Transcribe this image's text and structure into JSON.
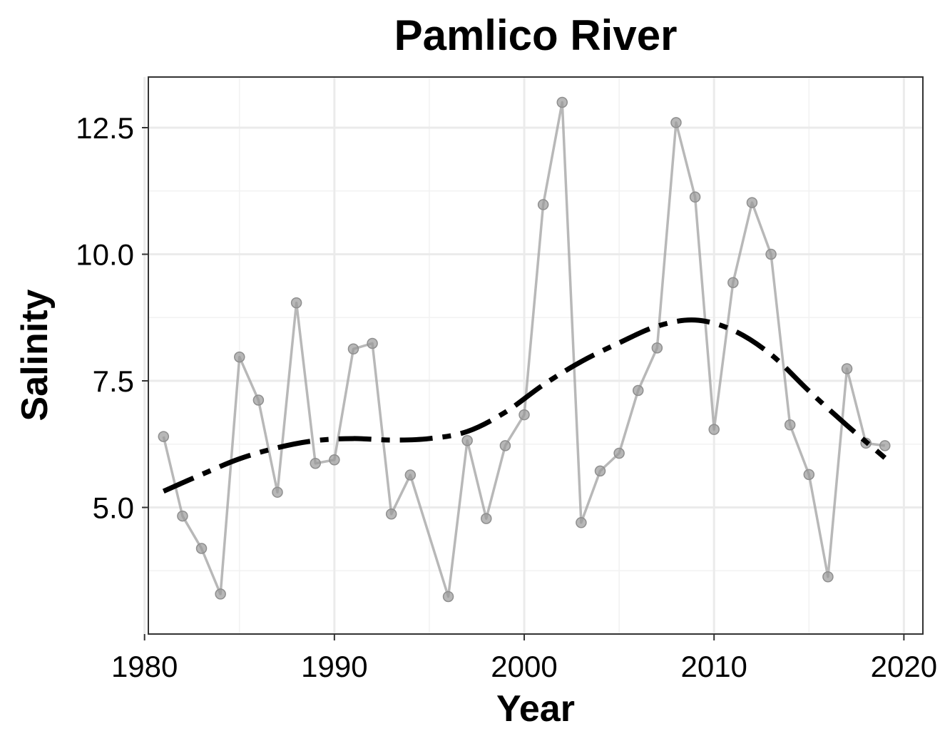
{
  "chart_data": {
    "type": "line",
    "title": "Pamlico River",
    "xlabel": "Year",
    "ylabel": "Salinity",
    "xlim": [
      1980.2,
      2021
    ],
    "ylim": [
      2.5,
      13.5
    ],
    "x_ticks": [
      1980,
      1990,
      2000,
      2010,
      2020
    ],
    "x_tick_labels": [
      "1980",
      "1990",
      "2000",
      "2010",
      "2020"
    ],
    "y_ticks": [
      5.0,
      7.5,
      10.0,
      12.5
    ],
    "y_tick_labels": [
      "5.0",
      "7.5",
      "10.0",
      "12.5"
    ],
    "grid": true,
    "series": [
      {
        "style": "line+points",
        "color": "#a6a6a6",
        "x": [
          1981,
          1982,
          1983,
          1984,
          1985,
          1986,
          1987,
          1988,
          1989,
          1990,
          1991,
          1992,
          1993,
          1994,
          1996,
          1997,
          1998,
          1999,
          2000,
          2001,
          2002,
          2003,
          2004,
          2005,
          2006,
          2007,
          2008,
          2009,
          2010,
          2011,
          2012,
          2013,
          2014,
          2015,
          2016,
          2017,
          2018,
          2019
        ],
        "y": [
          6.4,
          4.83,
          4.19,
          3.29,
          7.97,
          7.12,
          5.3,
          9.04,
          5.87,
          5.94,
          8.13,
          8.24,
          4.87,
          5.64,
          3.24,
          6.32,
          4.78,
          6.22,
          6.83,
          10.98,
          13.0,
          4.7,
          5.72,
          6.07,
          7.31,
          8.15,
          12.6,
          11.13,
          6.54,
          9.44,
          11.02,
          10.0,
          6.63,
          5.65,
          3.63,
          7.74,
          6.27,
          6.22
        ]
      },
      {
        "style": "dashed-trend",
        "color": "#000000",
        "x": [
          1981,
          1983,
          1985,
          1987,
          1989,
          1991,
          1993,
          1995,
          1997,
          1999,
          2001,
          2003,
          2005,
          2007,
          2009,
          2011,
          2013,
          2015,
          2017,
          2019
        ],
        "y": [
          5.32,
          5.65,
          5.96,
          6.18,
          6.32,
          6.36,
          6.33,
          6.36,
          6.5,
          6.88,
          7.42,
          7.88,
          8.25,
          8.58,
          8.7,
          8.5,
          8.02,
          7.3,
          6.62,
          5.98
        ]
      }
    ]
  }
}
